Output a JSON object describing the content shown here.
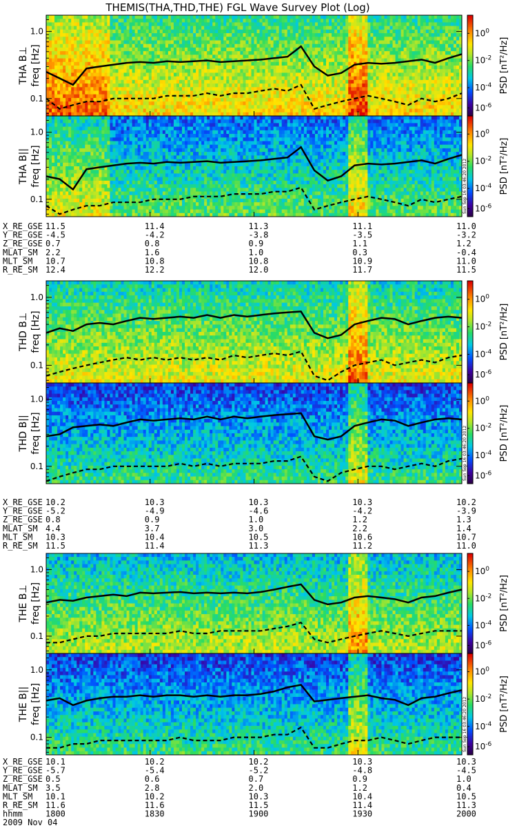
{
  "title": "THEMIS(THA,THD,THE) FGL Wave Survey Plot (Log)",
  "chart_data": {
    "type": "heatmap",
    "x_axis_label": "hhmm",
    "date": "2009 Nov 04",
    "time_ticks": [
      "1800",
      "1830",
      "1900",
      "1930",
      "2000"
    ],
    "y_ticks": [
      "0.1",
      "1.0"
    ],
    "y_scale": "log",
    "freq_range_hz": [
      0.06,
      1.6
    ],
    "colorbar": {
      "label": "PSD [nT²/Hz]",
      "ticks": [
        "10^0",
        "10^-2",
        "10^-4",
        "10^-6"
      ],
      "scale": "log"
    },
    "stamp": "Sun Sep 16 03:46:20 2012",
    "probes": [
      {
        "id": "THA",
        "panels": [
          {
            "label": "THA B⊥",
            "ylabel": "freq [Hz]",
            "solid": [
              0.25,
              0.2,
              0.16,
              0.28,
              0.3,
              0.32,
              0.34,
              0.35,
              0.34,
              0.36,
              0.35,
              0.36,
              0.37,
              0.35,
              0.36,
              0.37,
              0.38,
              0.4,
              0.42,
              0.6,
              0.3,
              0.22,
              0.24,
              0.32,
              0.34,
              0.33,
              0.34,
              0.36,
              0.38,
              0.34,
              0.4,
              0.46
            ],
            "dashed": [
              0.1,
              0.07,
              0.08,
              0.09,
              0.09,
              0.1,
              0.1,
              0.1,
              0.1,
              0.11,
              0.11,
              0.11,
              0.12,
              0.11,
              0.12,
              0.12,
              0.13,
              0.14,
              0.13,
              0.16,
              0.07,
              0.08,
              0.09,
              0.1,
              0.11,
              0.1,
              0.09,
              0.08,
              0.1,
              0.09,
              0.1,
              0.12
            ],
            "intensity": 0.75
          },
          {
            "label": "THA B||",
            "ylabel": "freq [Hz]",
            "solid": [
              0.22,
              0.2,
              0.14,
              0.28,
              0.3,
              0.32,
              0.34,
              0.35,
              0.34,
              0.36,
              0.35,
              0.36,
              0.37,
              0.35,
              0.36,
              0.37,
              0.38,
              0.4,
              0.42,
              0.6,
              0.27,
              0.19,
              0.22,
              0.32,
              0.34,
              0.33,
              0.34,
              0.36,
              0.38,
              0.34,
              0.4,
              0.46
            ],
            "dashed": [
              0.08,
              0.06,
              0.07,
              0.08,
              0.08,
              0.09,
              0.09,
              0.09,
              0.1,
              0.1,
              0.1,
              0.11,
              0.11,
              0.11,
              0.12,
              0.12,
              0.12,
              0.13,
              0.13,
              0.15,
              0.07,
              0.08,
              0.09,
              0.1,
              0.11,
              0.1,
              0.09,
              0.08,
              0.1,
              0.09,
              0.1,
              0.11
            ],
            "intensity": 0.55
          }
        ],
        "ephemeris": [
          {
            "label": "X_RE_GSE",
            "values": [
              "11.5",
              "11.4",
              "11.3",
              "11.1",
              "11.0"
            ]
          },
          {
            "label": "Y_RE_GSE",
            "values": [
              "-4.5",
              "-4.2",
              "-3.8",
              "-3.5",
              "-3.2"
            ]
          },
          {
            "label": "Z_RE_GSE",
            "values": [
              "0.7",
              "0.8",
              "0.9",
              "1.1",
              "1.2"
            ]
          },
          {
            "label": "MLAT_SM",
            "values": [
              "2.2",
              "1.6",
              "1.0",
              "0.3",
              "-0.4"
            ]
          },
          {
            "label": "MLT_SM",
            "values": [
              "10.7",
              "10.8",
              "10.8",
              "10.9",
              "11.0"
            ]
          },
          {
            "label": "R_RE_SM",
            "values": [
              "12.4",
              "12.2",
              "12.0",
              "11.7",
              "11.5"
            ]
          }
        ]
      },
      {
        "id": "THD",
        "panels": [
          {
            "label": "THD B⊥",
            "ylabel": "freq [Hz]",
            "solid": [
              0.3,
              0.35,
              0.32,
              0.4,
              0.42,
              0.4,
              0.45,
              0.5,
              0.48,
              0.5,
              0.52,
              0.5,
              0.55,
              0.5,
              0.55,
              0.52,
              0.55,
              0.58,
              0.6,
              0.62,
              0.3,
              0.25,
              0.28,
              0.4,
              0.45,
              0.5,
              0.48,
              0.4,
              0.45,
              0.5,
              0.52,
              0.5
            ],
            "dashed": [
              0.07,
              0.08,
              0.09,
              0.1,
              0.11,
              0.12,
              0.13,
              0.12,
              0.13,
              0.12,
              0.13,
              0.12,
              0.13,
              0.12,
              0.14,
              0.13,
              0.14,
              0.15,
              0.14,
              0.16,
              0.07,
              0.06,
              0.08,
              0.1,
              0.11,
              0.12,
              0.1,
              0.11,
              0.12,
              0.11,
              0.13,
              0.14
            ],
            "intensity": 0.7
          },
          {
            "label": "THD B||",
            "ylabel": "freq [Hz]",
            "solid": [
              0.28,
              0.3,
              0.38,
              0.4,
              0.42,
              0.4,
              0.45,
              0.5,
              0.48,
              0.5,
              0.52,
              0.5,
              0.55,
              0.5,
              0.55,
              0.52,
              0.55,
              0.58,
              0.6,
              0.62,
              0.28,
              0.25,
              0.28,
              0.4,
              0.45,
              0.5,
              0.48,
              0.4,
              0.45,
              0.5,
              0.52,
              0.5
            ],
            "dashed": [
              0.06,
              0.07,
              0.08,
              0.09,
              0.09,
              0.1,
              0.1,
              0.1,
              0.1,
              0.1,
              0.11,
              0.1,
              0.11,
              0.1,
              0.11,
              0.11,
              0.11,
              0.12,
              0.12,
              0.14,
              0.07,
              0.06,
              0.08,
              0.09,
              0.1,
              0.1,
              0.09,
              0.1,
              0.11,
              0.1,
              0.12,
              0.13
            ],
            "intensity": 0.5
          }
        ],
        "ephemeris": [
          {
            "label": "X_RE_GSE",
            "values": [
              "10.2",
              "10.3",
              "10.3",
              "10.3",
              "10.2"
            ]
          },
          {
            "label": "Y_RE_GSE",
            "values": [
              "-5.2",
              "-4.9",
              "-4.6",
              "-4.2",
              "-3.9"
            ]
          },
          {
            "label": "Z_RE_GSE",
            "values": [
              "0.8",
              "0.9",
              "1.0",
              "1.2",
              "1.3"
            ]
          },
          {
            "label": "MLAT_SM",
            "values": [
              "4.4",
              "3.7",
              "3.0",
              "2.2",
              "1.4"
            ]
          },
          {
            "label": "MLT_SM",
            "values": [
              "10.3",
              "10.4",
              "10.5",
              "10.6",
              "10.7"
            ]
          },
          {
            "label": "R_RE_SM",
            "values": [
              "11.5",
              "11.4",
              "11.3",
              "11.2",
              "11.0"
            ]
          }
        ]
      },
      {
        "id": "THE",
        "panels": [
          {
            "label": "THE B⊥",
            "ylabel": "freq [Hz]",
            "solid": [
              0.32,
              0.35,
              0.34,
              0.38,
              0.4,
              0.42,
              0.4,
              0.45,
              0.44,
              0.45,
              0.46,
              0.44,
              0.45,
              0.44,
              0.45,
              0.44,
              0.46,
              0.5,
              0.55,
              0.6,
              0.35,
              0.3,
              0.32,
              0.38,
              0.4,
              0.38,
              0.36,
              0.32,
              0.38,
              0.4,
              0.45,
              0.5
            ],
            "dashed": [
              0.08,
              0.08,
              0.09,
              0.1,
              0.1,
              0.11,
              0.11,
              0.11,
              0.11,
              0.11,
              0.12,
              0.11,
              0.11,
              0.12,
              0.12,
              0.12,
              0.12,
              0.13,
              0.14,
              0.16,
              0.09,
              0.08,
              0.09,
              0.1,
              0.11,
              0.12,
              0.11,
              0.1,
              0.11,
              0.12,
              0.12,
              0.12
            ],
            "intensity": 0.65
          },
          {
            "label": "THE B||",
            "ylabel": "freq [Hz]",
            "solid": [
              0.35,
              0.38,
              0.3,
              0.35,
              0.38,
              0.4,
              0.4,
              0.42,
              0.4,
              0.42,
              0.42,
              0.4,
              0.42,
              0.4,
              0.42,
              0.42,
              0.44,
              0.48,
              0.55,
              0.6,
              0.34,
              0.36,
              0.38,
              0.4,
              0.42,
              0.38,
              0.36,
              0.3,
              0.38,
              0.4,
              0.45,
              0.5
            ],
            "dashed": [
              0.07,
              0.07,
              0.08,
              0.08,
              0.09,
              0.09,
              0.09,
              0.09,
              0.09,
              0.09,
              0.1,
              0.09,
              0.09,
              0.09,
              0.1,
              0.1,
              0.1,
              0.11,
              0.11,
              0.14,
              0.07,
              0.07,
              0.08,
              0.09,
              0.09,
              0.1,
              0.09,
              0.08,
              0.09,
              0.1,
              0.1,
              0.1
            ],
            "intensity": 0.5
          }
        ],
        "ephemeris": [
          {
            "label": "X_RE_GSE",
            "values": [
              "10.1",
              "10.2",
              "10.2",
              "10.3",
              "10.3"
            ]
          },
          {
            "label": "Y_RE_GSE",
            "values": [
              "-5.7",
              "-5.4",
              "-5.2",
              "-4.8",
              "-4.5"
            ]
          },
          {
            "label": "Z_RE_GSE",
            "values": [
              "0.5",
              "0.6",
              "0.7",
              "0.9",
              "1.0"
            ]
          },
          {
            "label": "MLAT_SM",
            "values": [
              "3.5",
              "2.8",
              "2.0",
              "1.2",
              "0.4"
            ]
          },
          {
            "label": "MLT_SM",
            "values": [
              "10.1",
              "10.2",
              "10.3",
              "10.4",
              "10.5"
            ]
          },
          {
            "label": "R_RE_SM",
            "values": [
              "11.6",
              "11.6",
              "11.5",
              "11.4",
              "11.3"
            ]
          }
        ]
      }
    ]
  }
}
